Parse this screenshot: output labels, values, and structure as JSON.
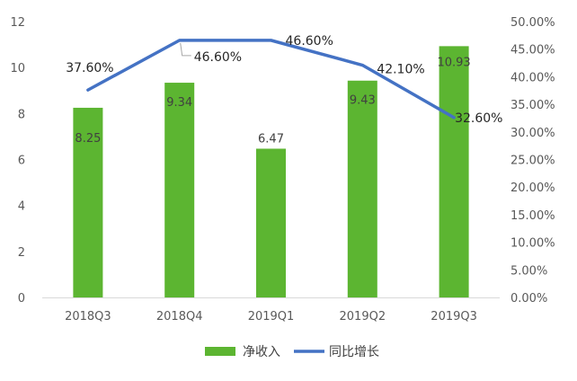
{
  "chart_data": {
    "type": "bar",
    "categories": [
      "2018Q3",
      "2018Q4",
      "2019Q1",
      "2019Q2",
      "2019Q3"
    ],
    "series": [
      {
        "name": "净收入",
        "kind": "bar",
        "axis": "left",
        "values": [
          8.25,
          9.34,
          6.47,
          9.43,
          10.93
        ],
        "labels": [
          "8.25",
          "9.34",
          "6.47",
          "9.43",
          "10.93"
        ],
        "color": "#5cb531"
      },
      {
        "name": "同比增长",
        "kind": "line",
        "axis": "right",
        "values": [
          37.6,
          46.6,
          46.6,
          42.1,
          32.6
        ],
        "labels": [
          "37.60%",
          "46.60%",
          "46.60%",
          "42.10%",
          "32.60%"
        ],
        "color": "#4472c4"
      }
    ],
    "y_left": {
      "ylim": [
        0,
        12
      ],
      "ticks": [
        "0",
        "2",
        "4",
        "6",
        "8",
        "10",
        "12"
      ]
    },
    "y_right": {
      "ylim": [
        0,
        50
      ],
      "ticks": [
        "0.00%",
        "5.00%",
        "10.00%",
        "15.00%",
        "20.00%",
        "25.00%",
        "30.00%",
        "35.00%",
        "40.00%",
        "45.00%",
        "50.00%"
      ]
    },
    "grid": false,
    "legend": "bottom"
  }
}
